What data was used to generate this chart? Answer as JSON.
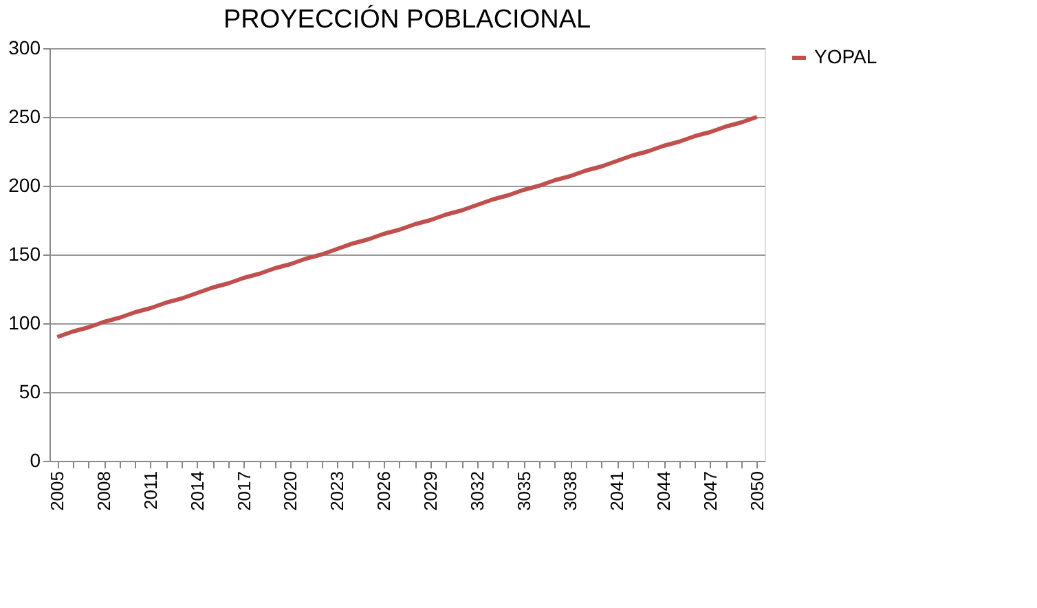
{
  "chart_data": {
    "type": "line",
    "title": "PROYECCIÓN POBLACIONAL",
    "categories": [
      "2005",
      null,
      null,
      "2008",
      null,
      null,
      "2011",
      null,
      null,
      "2014",
      null,
      null,
      "2017",
      null,
      null,
      "2020",
      null,
      null,
      "2023",
      null,
      null,
      "2026",
      null,
      null,
      "2029",
      null,
      null,
      "3032",
      null,
      null,
      "3035",
      null,
      null,
      "3038",
      null,
      null,
      "2041",
      null,
      null,
      "2044",
      null,
      null,
      "2047",
      null,
      null,
      "2050"
    ],
    "series": [
      {
        "name": "YOPAL",
        "color": "#c0504d",
        "values": [
          90,
          94,
          97,
          101,
          104,
          108,
          111,
          115,
          118,
          122,
          126,
          129,
          133,
          136,
          140,
          143,
          147,
          150,
          154,
          158,
          161,
          165,
          168,
          172,
          175,
          179,
          182,
          186,
          190,
          193,
          197,
          200,
          204,
          207,
          211,
          214,
          218,
          222,
          225,
          229,
          232,
          236,
          239,
          243,
          246,
          250
        ]
      }
    ],
    "ylim": [
      0,
      300
    ],
    "yticks": [
      0,
      50,
      100,
      150,
      200,
      250,
      300
    ],
    "grid": "y",
    "legend": "right",
    "marker": "none",
    "line_style": "solid"
  }
}
